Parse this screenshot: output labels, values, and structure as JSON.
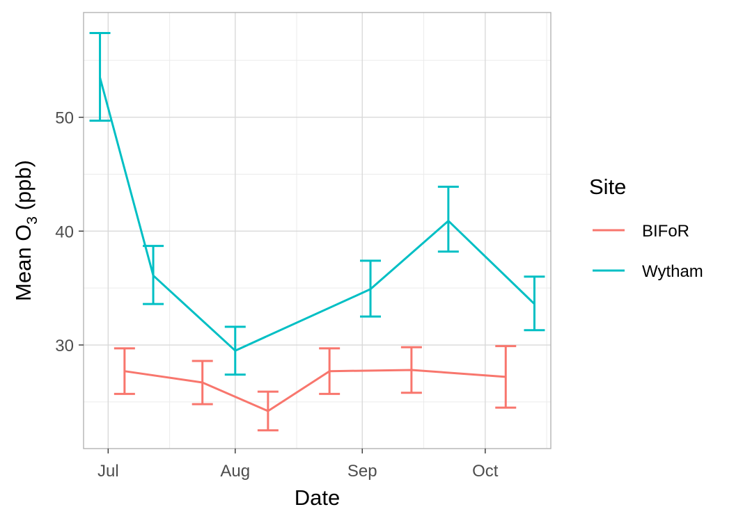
{
  "chart_data": {
    "type": "line",
    "xlabel": "Date",
    "ylabel": {
      "prefix": "Mean O",
      "subscript": "3",
      "suffix": " (ppb)"
    },
    "x_axis": {
      "kind": "date",
      "range": [
        "2019-06-25",
        "2019-10-17"
      ],
      "ticks": [
        {
          "date": "2019-07-01",
          "label": "Jul"
        },
        {
          "date": "2019-08-01",
          "label": "Aug"
        },
        {
          "date": "2019-09-01",
          "label": "Sep"
        },
        {
          "date": "2019-10-01",
          "label": "Oct"
        }
      ],
      "minor_gridlines": [
        "2019-07-16",
        "2019-08-16",
        "2019-09-16",
        "2019-10-16"
      ]
    },
    "y_axis": {
      "range": [
        20.9,
        59.2
      ],
      "ticks": [
        30,
        40,
        50
      ],
      "minor_gridlines": [
        25,
        35,
        45,
        55
      ]
    },
    "grid": true,
    "legend": {
      "title": "Site",
      "placement": "right"
    },
    "series": [
      {
        "name": "BIFoR",
        "color": "#F8766D",
        "points": [
          {
            "x": "2019-07-05",
            "y": 27.7,
            "ymin": 25.7,
            "ymax": 29.7
          },
          {
            "x": "2019-07-24",
            "y": 26.7,
            "ymin": 24.8,
            "ymax": 28.6
          },
          {
            "x": "2019-08-09",
            "y": 24.2,
            "ymin": 22.5,
            "ymax": 25.9
          },
          {
            "x": "2019-08-24",
            "y": 27.7,
            "ymin": 25.7,
            "ymax": 29.7
          },
          {
            "x": "2019-09-13",
            "y": 27.8,
            "ymin": 25.8,
            "ymax": 29.8
          },
          {
            "x": "2019-10-06",
            "y": 27.2,
            "ymin": 24.5,
            "ymax": 29.9
          }
        ]
      },
      {
        "name": "Wytham",
        "color": "#00BFC4",
        "points": [
          {
            "x": "2019-06-29",
            "y": 53.5,
            "ymin": 49.7,
            "ymax": 57.4
          },
          {
            "x": "2019-07-12",
            "y": 36.1,
            "ymin": 33.6,
            "ymax": 38.7
          },
          {
            "x": "2019-08-01",
            "y": 29.5,
            "ymin": 27.4,
            "ymax": 31.6
          },
          {
            "x": "2019-09-03",
            "y": 34.9,
            "ymin": 32.5,
            "ymax": 37.4
          },
          {
            "x": "2019-09-22",
            "y": 40.9,
            "ymin": 38.2,
            "ymax": 43.9
          },
          {
            "x": "2019-10-13",
            "y": 33.6,
            "ymin": 31.3,
            "ymax": 36.0
          }
        ]
      }
    ]
  }
}
